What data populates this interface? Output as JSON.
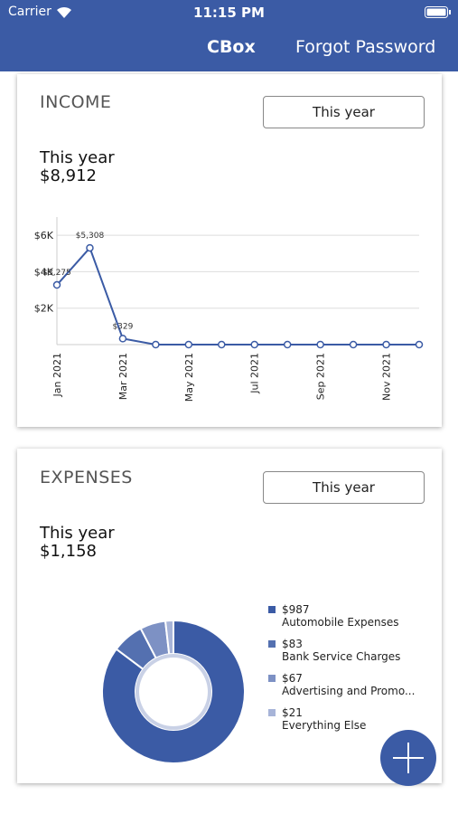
{
  "status_bar": {
    "carrier": "Carrier",
    "time": "11:15 PM"
  },
  "nav": {
    "title": "CBox",
    "action": "Forgot Password"
  },
  "income": {
    "heading": "INCOME",
    "period_button": "This year",
    "period_label": "This year",
    "total": "$8,912",
    "chart": {
      "type": "line",
      "categories": [
        "Jan 2021",
        null,
        "Mar 2021",
        null,
        "May 2021",
        null,
        "Jul 2021",
        null,
        "Sep 2021",
        null,
        "Nov 2021",
        null
      ],
      "values": [
        3275,
        5308,
        329,
        0,
        0,
        0,
        0,
        0,
        0,
        0,
        0,
        0
      ],
      "value_labels": [
        "$3,275",
        "$5,308",
        "$329",
        null,
        null,
        null,
        null,
        null,
        null,
        null,
        null,
        null
      ],
      "ylim": [
        0,
        7000
      ],
      "yticks": [
        {
          "value": 2000,
          "label": "$2K"
        },
        {
          "value": 4000,
          "label": "$4K"
        },
        {
          "value": 6000,
          "label": "$6K"
        }
      ],
      "grid": true,
      "color": "#3b5ba5"
    }
  },
  "expenses": {
    "heading": "EXPENSES",
    "period_button": "This year",
    "period_label": "This year",
    "total": "$1,158",
    "chart": {
      "type": "donut",
      "categories": [
        "Automobile Expenses",
        "Bank Service Charges",
        "Advertising and Promo...",
        "Everything Else"
      ],
      "values": [
        987,
        83,
        67,
        21
      ],
      "value_labels": [
        "$987",
        "$83",
        "$67",
        "$21"
      ],
      "colors": [
        "#3b5ba5",
        "#5470b0",
        "#7d91c4",
        "#a7b4d8"
      ]
    }
  }
}
